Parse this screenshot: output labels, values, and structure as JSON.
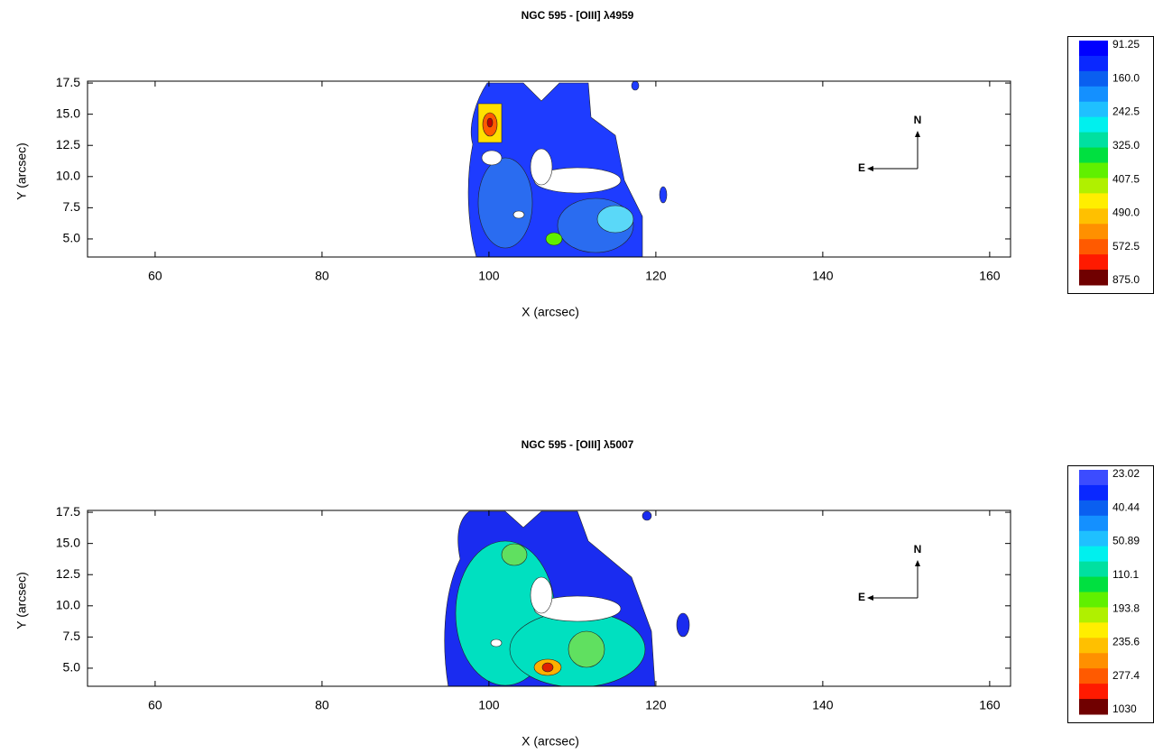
{
  "chart_data": [
    {
      "type": "contour",
      "title": "NGC 595 - [OIII] λ4959",
      "x_label": "X (arcsec)",
      "y_label": "Y (arcsec)",
      "xlim": [
        51.9,
        162.5
      ],
      "xticks": [
        60,
        80,
        100,
        120,
        140,
        160
      ],
      "ylim": [
        3.55,
        17.65
      ],
      "yticks": [
        {
          "value": 5,
          "label": "5.0"
        },
        7.5,
        {
          "value": 10,
          "label": "10.0"
        },
        12.5,
        {
          "value": 15,
          "label": "15.0"
        },
        17.5
      ],
      "compass": {
        "north": "N",
        "east": "E"
      },
      "colorbar": {
        "ticks": [
          91.25,
          {
            "value": 160,
            "label": "160.0"
          },
          242.5,
          {
            "value": 325,
            "label": "325.0"
          },
          407.5,
          {
            "value": 490,
            "label": "490.0"
          },
          572.5,
          {
            "value": 875,
            "label": "875.0"
          }
        ],
        "colors": [
          "#0000ff",
          "#0a28ff",
          "#0a5ff0",
          "#1490ff",
          "#1fc0ff",
          "#00f0ee",
          "#00e0a0",
          "#00e040",
          "#60f000",
          "#b0f000",
          "#ffee00",
          "#ffc000",
          "#ff9000",
          "#ff5a00",
          "#ff1a00",
          "#700000"
        ]
      }
    },
    {
      "type": "contour",
      "title": "NGC 595 - [OIII] λ5007",
      "x_label": "X (arcsec)",
      "y_label": "Y (arcsec)",
      "xlim": [
        51.9,
        162.5
      ],
      "xticks": [
        60,
        80,
        100,
        120,
        140,
        160
      ],
      "ylim": [
        3.55,
        17.65
      ],
      "yticks": [
        {
          "value": 5,
          "label": "5.0"
        },
        7.5,
        {
          "value": 10,
          "label": "10.0"
        },
        12.5,
        {
          "value": 15,
          "label": "15.0"
        },
        17.5
      ],
      "compass": {
        "north": "N",
        "east": "E"
      },
      "colorbar": {
        "ticks": [
          23.02,
          40.44,
          50.89,
          110.1,
          193.8,
          235.6,
          277.4,
          1030
        ],
        "colors": [
          "#3c4cff",
          "#0a28ff",
          "#0a5ff0",
          "#1490ff",
          "#1fc0ff",
          "#00f0ee",
          "#00e0a0",
          "#00e040",
          "#60f000",
          "#b0f000",
          "#ffee00",
          "#ffc000",
          "#ff9000",
          "#ff5a00",
          "#ff1a00",
          "#700000"
        ]
      }
    }
  ]
}
